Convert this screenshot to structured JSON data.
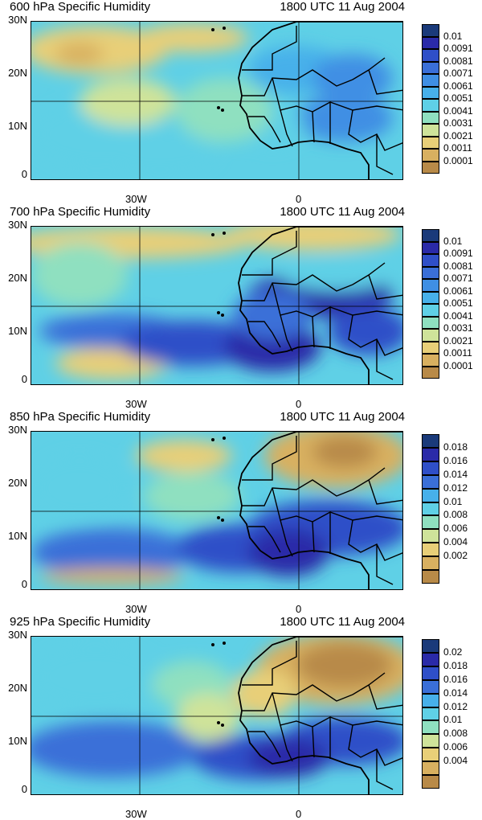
{
  "panels": [
    {
      "title": "600 hPa Specific Humidity",
      "time": "1800 UTC 11 Aug 2004",
      "levels": [
        "0.01",
        "0.0091",
        "0.0081",
        "0.0071",
        "0.0061",
        "0.0051",
        "0.0041",
        "0.0031",
        "0.0021",
        "0.0011",
        "0.0001"
      ],
      "palette": [
        "#1a3a7a",
        "#2a2aa8",
        "#2f4fc8",
        "#3a6fd8",
        "#3f8fe4",
        "#47b0ea",
        "#5fd0e6",
        "#8fe0c0",
        "#cfe39a",
        "#e8cf78",
        "#d8b060",
        "#b88a48"
      ],
      "humidity_pattern": "dry-north"
    },
    {
      "title": "700 hPa Specific Humidity",
      "time": "1800 UTC 11 Aug 2004",
      "levels": [
        "0.01",
        "0.0091",
        "0.0081",
        "0.0071",
        "0.0061",
        "0.0051",
        "0.0041",
        "0.0031",
        "0.0021",
        "0.0011",
        "0.0001"
      ],
      "palette": [
        "#1a3a7a",
        "#2a2aa8",
        "#2f4fc8",
        "#3a6fd8",
        "#3f8fe4",
        "#47b0ea",
        "#5fd0e6",
        "#8fe0c0",
        "#cfe39a",
        "#e8cf78",
        "#d8b060",
        "#b88a48"
      ],
      "humidity_pattern": "moist-band"
    },
    {
      "title": "850 hPa Specific Humidity",
      "time": "1800 UTC 11 Aug 2004",
      "levels": [
        "0.018",
        "0.016",
        "0.014",
        "0.012",
        "0.01",
        "0.008",
        "0.006",
        "0.004",
        "0.002"
      ],
      "palette": [
        "#1a3a7a",
        "#2a2aa8",
        "#2f4fc8",
        "#3a6fd8",
        "#47b0ea",
        "#5fd0e6",
        "#8fe0c0",
        "#cfe39a",
        "#e8cf78",
        "#d8b060",
        "#b88a48"
      ],
      "humidity_pattern": "moist-south"
    },
    {
      "title": "925 hPa Specific Humidity",
      "time": "1800 UTC 11 Aug 2004",
      "levels": [
        "0.02",
        "0.018",
        "0.016",
        "0.014",
        "0.012",
        "0.01",
        "0.008",
        "0.006",
        "0.004"
      ],
      "palette": [
        "#1a3a7a",
        "#2a2aa8",
        "#2f4fc8",
        "#3a6fd8",
        "#47b0ea",
        "#5fd0e6",
        "#8fe0c0",
        "#cfe39a",
        "#e8cf78",
        "#d8b060",
        "#b88a48"
      ],
      "humidity_pattern": "dry-sahara"
    }
  ],
  "axes": {
    "y_ticks": [
      "30N",
      "20N",
      "10N",
      "0"
    ],
    "x_ticks": [
      "30W",
      "0"
    ]
  },
  "colors": {
    "coastline": "#000000",
    "grid": "#000000"
  }
}
